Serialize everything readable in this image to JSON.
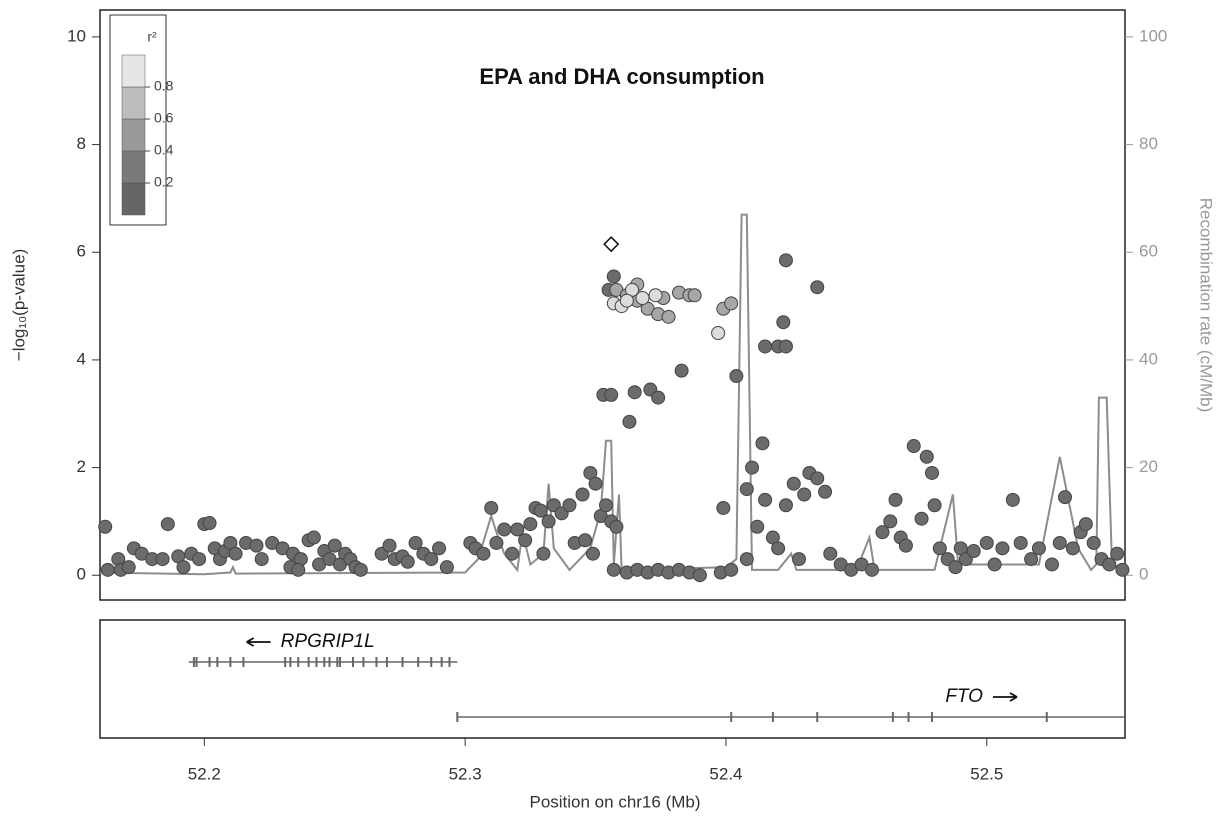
{
  "chart_data": {
    "type": "scatter",
    "title": "EPA and DHA consumption",
    "x_label": "Position on chr16 (Mb)",
    "y_label": "−log₁₀(p-value)",
    "y2_label": "Recombination rate (cM/Mb)",
    "xlim": [
      52.16,
      52.553
    ],
    "xticks": [
      52.2,
      52.3,
      52.4,
      52.5
    ],
    "ylim": [
      -0.46,
      10.5
    ],
    "yticks": [
      0,
      2,
      4,
      6,
      8,
      10
    ],
    "y2lim": [
      -4.6,
      105
    ],
    "y2ticks": [
      0,
      20,
      40,
      60,
      80,
      100
    ],
    "legend": {
      "title": "r²",
      "ticks": [
        0.2,
        0.4,
        0.6,
        0.8
      ],
      "colors": [
        "#666666",
        "#7a7a7a",
        "#999999",
        "#bdbdbd",
        "#e6e6e6"
      ]
    },
    "lead": {
      "x": 52.356,
      "value": 6.15
    },
    "series": [
      {
        "color": "#6b6b6b",
        "x": [
          52.162,
          52.163,
          52.167,
          52.168,
          52.171,
          52.173,
          52.176,
          52.18,
          52.186,
          52.184,
          52.19,
          52.192,
          52.195,
          52.198,
          52.2,
          52.202,
          52.204,
          52.206,
          52.208,
          52.21,
          52.212,
          52.216,
          52.22,
          52.222,
          52.226,
          52.23,
          52.234,
          52.237,
          52.24,
          52.242,
          52.244,
          52.246,
          52.248,
          52.25,
          52.252,
          52.254,
          52.256,
          52.258,
          52.26,
          52.233,
          52.236,
          52.268,
          52.271,
          52.273,
          52.276,
          52.278,
          52.281,
          52.284,
          52.287,
          52.29,
          52.293,
          52.302,
          52.304,
          52.307,
          52.31,
          52.312,
          52.315,
          52.318,
          52.32,
          52.323,
          52.325,
          52.327,
          52.329,
          52.33,
          52.332,
          52.334,
          52.337,
          52.34,
          52.342,
          52.345,
          52.348,
          52.35,
          52.352,
          52.354,
          52.356,
          52.358,
          52.346,
          52.349,
          52.353,
          52.356,
          52.365,
          52.363,
          52.371,
          52.374,
          52.383,
          52.355,
          52.357,
          52.357,
          52.362,
          52.366,
          52.37,
          52.374,
          52.378,
          52.382,
          52.386,
          52.39,
          52.398,
          52.402,
          52.404,
          52.399,
          52.408,
          52.41,
          52.408,
          52.412,
          52.415,
          52.418,
          52.42,
          52.423,
          52.426,
          52.428,
          52.43,
          52.432,
          52.435,
          52.438,
          52.414,
          52.42,
          52.423,
          52.415,
          52.422,
          52.423,
          52.435,
          52.44,
          52.444,
          52.448,
          52.452,
          52.456,
          52.46,
          52.463,
          52.465,
          52.467,
          52.469,
          52.472,
          52.475,
          52.477,
          52.479,
          52.48,
          52.482,
          52.485,
          52.488,
          52.49,
          52.492,
          52.495,
          52.5,
          52.503,
          52.506,
          52.51,
          52.513,
          52.517,
          52.52,
          52.525,
          52.528,
          52.53,
          52.533,
          52.536,
          52.538,
          52.541,
          52.544,
          52.547,
          52.55,
          52.552
        ],
        "values": [
          0.9,
          0.1,
          0.3,
          0.1,
          0.15,
          0.5,
          0.4,
          0.3,
          0.95,
          0.3,
          0.35,
          0.15,
          0.4,
          0.3,
          0.95,
          0.97,
          0.5,
          0.3,
          0.45,
          0.6,
          0.4,
          0.6,
          0.55,
          0.3,
          0.6,
          0.5,
          0.4,
          0.3,
          0.65,
          0.7,
          0.2,
          0.45,
          0.3,
          0.55,
          0.2,
          0.4,
          0.3,
          0.15,
          0.1,
          0.15,
          0.1,
          0.4,
          0.55,
          0.3,
          0.35,
          0.25,
          0.6,
          0.4,
          0.3,
          0.5,
          0.15,
          0.6,
          0.5,
          0.4,
          1.25,
          0.6,
          0.85,
          0.4,
          0.85,
          0.65,
          0.95,
          1.25,
          1.2,
          0.4,
          1.0,
          1.3,
          1.15,
          1.3,
          0.6,
          1.5,
          1.9,
          1.7,
          1.1,
          1.3,
          1.0,
          0.9,
          0.65,
          0.4,
          3.35,
          3.35,
          3.4,
          2.85,
          3.45,
          3.3,
          3.8,
          5.3,
          5.55,
          0.1,
          0.05,
          0.1,
          0.05,
          0.1,
          0.05,
          0.1,
          0.05,
          0.0,
          0.05,
          0.1,
          3.7,
          1.25,
          1.6,
          2.0,
          0.3,
          0.9,
          1.4,
          0.7,
          0.5,
          1.3,
          1.7,
          0.3,
          1.5,
          1.9,
          1.8,
          1.55,
          2.45,
          4.25,
          4.25,
          4.25,
          4.7,
          5.85,
          5.35,
          0.4,
          0.2,
          0.1,
          0.2,
          0.1,
          0.8,
          1.0,
          1.4,
          0.7,
          0.55,
          2.4,
          1.05,
          2.2,
          1.9,
          1.3,
          0.5,
          0.3,
          0.15,
          0.5,
          0.3,
          0.45,
          0.6,
          0.2,
          0.5,
          1.4,
          0.6,
          0.3,
          0.5,
          0.2,
          0.6,
          1.45,
          0.5,
          0.8,
          0.95,
          0.6,
          0.3,
          0.2,
          0.4,
          0.1
        ]
      },
      {
        "color": "#a6a6a6",
        "x": [
          52.358,
          52.362,
          52.366,
          52.37,
          52.374,
          52.378,
          52.382,
          52.386,
          52.366,
          52.376,
          52.388,
          52.399,
          52.402
        ],
        "values": [
          5.3,
          5.2,
          5.1,
          4.95,
          4.85,
          4.8,
          5.25,
          5.2,
          5.4,
          5.15,
          5.2,
          4.95,
          5.05
        ]
      },
      {
        "color": "#dcdcdc",
        "x": [
          52.357,
          52.36,
          52.364,
          52.368,
          52.373,
          52.397,
          52.362
        ],
        "values": [
          5.05,
          5.0,
          5.3,
          5.15,
          5.2,
          4.5,
          5.1
        ]
      }
    ],
    "recombination": {
      "color": "#8c8c8c",
      "x": [
        52.16,
        52.2,
        52.21,
        52.211,
        52.212,
        52.3,
        52.305,
        52.31,
        52.312,
        52.315,
        52.32,
        52.322,
        52.325,
        52.33,
        52.332,
        52.334,
        52.34,
        52.348,
        52.352,
        52.354,
        52.356,
        52.357,
        52.359,
        52.36,
        52.4,
        52.404,
        52.406,
        52.408,
        52.41,
        52.42,
        52.425,
        52.427,
        52.45,
        52.455,
        52.457,
        52.48,
        52.487,
        52.489,
        52.52,
        52.528,
        52.535,
        52.54,
        52.542,
        52.543,
        52.546,
        52.548,
        52.553
      ],
      "values": [
        0.5,
        0.2,
        0.5,
        1.5,
        0.3,
        0.5,
        3,
        11,
        8,
        4,
        1,
        8,
        2,
        4,
        17,
        5,
        1,
        5,
        12,
        25,
        25,
        2,
        15,
        1,
        1.5,
        3,
        67,
        67,
        1,
        1,
        4,
        1,
        1,
        7,
        1,
        1,
        15,
        2,
        2,
        22,
        5,
        1,
        2,
        33,
        33,
        2,
        1
      ]
    },
    "genes": [
      {
        "name": "RPGRIP1L",
        "start": 52.194,
        "end": 52.297,
        "direction": "left",
        "exons": [
          52.196,
          52.197,
          52.202,
          52.205,
          52.21,
          52.215,
          52.231,
          52.233,
          52.236,
          52.24,
          52.243,
          52.246,
          52.248,
          52.251,
          52.252,
          52.257,
          52.261,
          52.266,
          52.27,
          52.276,
          52.282,
          52.287,
          52.291,
          52.294
        ]
      },
      {
        "name": "FTO",
        "start": 52.297,
        "end": 52.553,
        "direction": "right",
        "exons": [
          52.297,
          52.402,
          52.418,
          52.435,
          52.464,
          52.47,
          52.479,
          52.523
        ]
      }
    ]
  }
}
